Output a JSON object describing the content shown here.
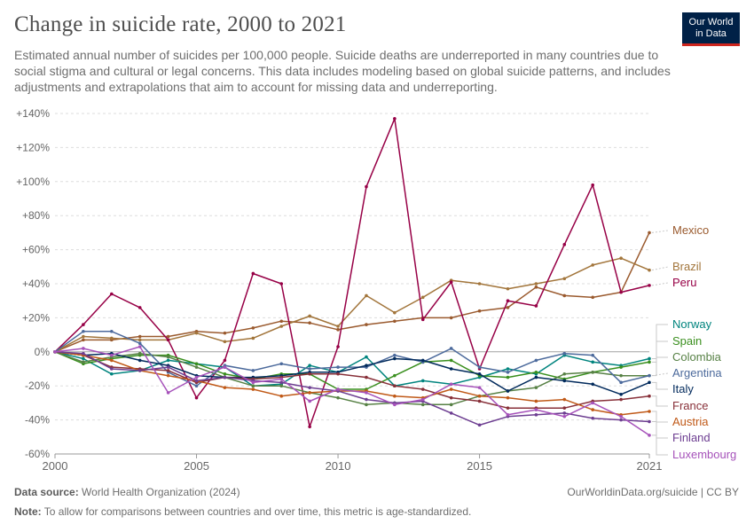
{
  "header": {
    "title": "Change in suicide rate, 2000 to 2021",
    "subtitle": "Estimated annual number of suicides per 100,000 people. Suicide deaths are underreported in many countries due to social stigma and cultural or legal concerns. This data includes modeling based on global suicide patterns, and includes adjustments and extrapolations that aim to account for missing data and underreporting.",
    "logo_line1": "Our World",
    "logo_line2": "in Data"
  },
  "footer": {
    "source_label": "Data source:",
    "source_text": "World Health Organization (2024)",
    "url": "OurWorldinData.org/suicide | CC BY",
    "note_label": "Note:",
    "note_text": "To allow for comparisons between countries and over time, this metric is age-standardized."
  },
  "colors": {
    "Mexico": "#a2559c",
    "Brazil": "#b16214",
    "Peru": "#970046",
    "Norway": "#00847e",
    "Spain": "#38aaba",
    "Colombia": "#578145",
    "Argentina": "#4c6a9c",
    "Italy": "#00295b",
    "France": "#883039",
    "Austria": "#c05917",
    "Finland": "#6d3e91",
    "Luxembourg": "#a652ba"
  },
  "chart_data": {
    "type": "line",
    "title": "Change in suicide rate, 2000 to 2021",
    "xlabel": "",
    "ylabel": "",
    "xlim": [
      2000,
      2021
    ],
    "ylim": [
      -60,
      140
    ],
    "x_ticks": [
      2000,
      2005,
      2010,
      2015,
      2021
    ],
    "y_ticks": [
      -60,
      -40,
      -20,
      0,
      20,
      40,
      60,
      80,
      100,
      120,
      140
    ],
    "y_tick_labels": [
      "-60%",
      "-40%",
      "-20%",
      "0%",
      "+20%",
      "+40%",
      "+60%",
      "+80%",
      "+100%",
      "+120%",
      "+140%"
    ],
    "x": [
      2000,
      2001,
      2002,
      2003,
      2004,
      2005,
      2006,
      2007,
      2008,
      2009,
      2010,
      2011,
      2012,
      2013,
      2014,
      2015,
      2016,
      2017,
      2018,
      2019,
      2020,
      2021
    ],
    "series": [
      {
        "name": "Mexico",
        "color": "#9a5a2e",
        "values": [
          0,
          7,
          7,
          9,
          9,
          12,
          11,
          14,
          18,
          17,
          13,
          16,
          18,
          20,
          20,
          24,
          26,
          38,
          33,
          32,
          35,
          70
        ]
      },
      {
        "name": "Brazil",
        "color": "#a2753b",
        "values": [
          0,
          9,
          8,
          7,
          7,
          11,
          6,
          8,
          15,
          21,
          15,
          33,
          23,
          32,
          42,
          40,
          37,
          40,
          43,
          51,
          55,
          48
        ]
      },
      {
        "name": "Peru",
        "color": "#970046",
        "values": [
          0,
          16,
          34,
          26,
          7,
          -27,
          -5,
          46,
          40,
          -44,
          3,
          97,
          137,
          19,
          41,
          -10,
          30,
          27,
          63,
          98,
          35,
          39
        ]
      },
      {
        "name": "Norway",
        "color": "#00847e",
        "values": [
          0,
          -4,
          -13,
          -11,
          -5,
          -7,
          -9,
          -20,
          -19,
          -8,
          -12,
          -3,
          -20,
          -17,
          -19,
          -15,
          -10,
          -13,
          -2,
          -6,
          -8,
          -4
        ]
      },
      {
        "name": "Spain",
        "color": "#3a8f1e",
        "values": [
          0,
          -7,
          -4,
          -2,
          -2,
          -7,
          -13,
          -16,
          -13,
          -13,
          -22,
          -22,
          -14,
          -6,
          -5,
          -14,
          -15,
          -12,
          -16,
          -12,
          -9,
          -6
        ]
      },
      {
        "name": "Colombia",
        "color": "#578145",
        "values": [
          0,
          -6,
          -3,
          -1,
          -3,
          -9,
          -15,
          -20,
          -20,
          -24,
          -27,
          -31,
          -30,
          -31,
          -31,
          -26,
          -23,
          -21,
          -13,
          -12,
          -14,
          -14
        ]
      },
      {
        "name": "Argentina",
        "color": "#4c6a9c",
        "values": [
          0,
          12,
          12,
          5,
          -12,
          -20,
          -8,
          -11,
          -7,
          -10,
          -9,
          -9,
          -2,
          -6,
          2,
          -9,
          -12,
          -5,
          -1,
          -2,
          -18,
          -14
        ]
      },
      {
        "name": "Italy",
        "color": "#00295b",
        "values": [
          0,
          -2,
          -1,
          -5,
          -8,
          -14,
          -15,
          -15,
          -14,
          -12,
          -12,
          -8,
          -4,
          -5,
          -10,
          -13,
          -23,
          -15,
          -17,
          -19,
          -25,
          -18
        ]
      },
      {
        "name": "France",
        "color": "#883039",
        "values": [
          0,
          -2,
          -9,
          -10,
          -11,
          -18,
          -15,
          -16,
          -15,
          -13,
          -13,
          -15,
          -20,
          -22,
          -27,
          -29,
          -33,
          -33,
          -33,
          -29,
          -28,
          -26
        ]
      },
      {
        "name": "Austria",
        "color": "#c05917",
        "values": [
          0,
          -2,
          -5,
          -11,
          -14,
          -17,
          -21,
          -22,
          -26,
          -24,
          -23,
          -23,
          -26,
          -27,
          -22,
          -26,
          -27,
          -29,
          -28,
          -34,
          -37,
          -35
        ]
      },
      {
        "name": "Finland",
        "color": "#6d3e91",
        "values": [
          0,
          -1,
          -10,
          -11,
          -9,
          -17,
          -15,
          -17,
          -18,
          -21,
          -23,
          -28,
          -30,
          -29,
          -36,
          -43,
          -38,
          -37,
          -36,
          -39,
          -40,
          -41
        ]
      },
      {
        "name": "Luxembourg",
        "color": "#a652ba",
        "values": [
          0,
          2,
          -2,
          3,
          -24,
          -15,
          -9,
          -18,
          -16,
          -29,
          -22,
          -24,
          -31,
          -28,
          -19,
          -21,
          -37,
          -34,
          -38,
          -30,
          -38,
          -49
        ]
      }
    ],
    "legend": [
      "Mexico",
      "Brazil",
      "Peru",
      "Norway",
      "Spain",
      "Colombia",
      "Argentina",
      "Italy",
      "France",
      "Austria",
      "Finland",
      "Luxembourg"
    ]
  }
}
